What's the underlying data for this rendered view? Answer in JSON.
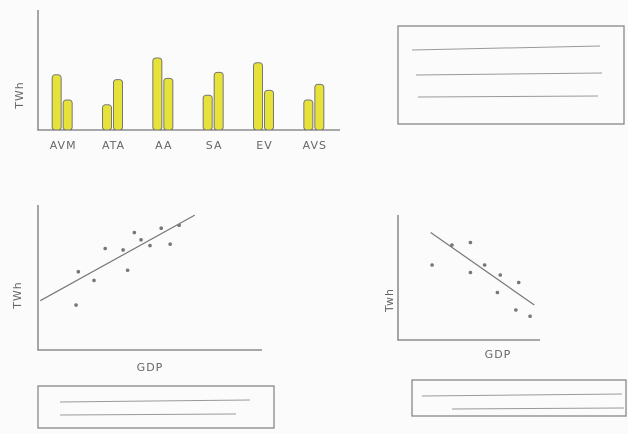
{
  "chart_data": [
    {
      "type": "bar",
      "ylabel": "TWh",
      "categories": [
        "AVM",
        "ATA",
        "AA",
        "SA",
        "EV",
        "AVS"
      ],
      "series": [
        {
          "color": "#e6e23a",
          "values": [
            46,
            21,
            60,
            29,
            56,
            25
          ]
        },
        {
          "color": "#e6e23a",
          "values": [
            25,
            42,
            43,
            48,
            33,
            38
          ]
        }
      ],
      "ylim": [
        0,
        100
      ]
    },
    {
      "type": "scatter",
      "xlabel": "GDP",
      "ylabel": "TWh",
      "color": "#777",
      "x": [
        17,
        18,
        25,
        30,
        38,
        40,
        43,
        46,
        50,
        55,
        59,
        63
      ],
      "y": [
        31,
        54,
        48,
        70,
        69,
        55,
        81,
        76,
        72,
        84,
        73,
        86
      ],
      "trend": {
        "x": [
          1,
          70
        ],
        "y": [
          34,
          93
        ]
      },
      "xlim": [
        0,
        100
      ],
      "ylim": [
        0,
        100
      ]
    },
    {
      "type": "scatter",
      "xlabel": "GDP",
      "ylabel": "Twh",
      "color": "#777",
      "x": [
        24,
        38,
        51,
        51,
        61,
        72,
        70,
        85,
        83,
        93
      ],
      "y": [
        60,
        76,
        78,
        54,
        60,
        52,
        38,
        46,
        24,
        19
      ],
      "trend": {
        "x": [
          23,
          96
        ],
        "y": [
          86,
          28
        ]
      },
      "xlim": [
        0,
        100
      ],
      "ylim": [
        0,
        100
      ]
    }
  ]
}
